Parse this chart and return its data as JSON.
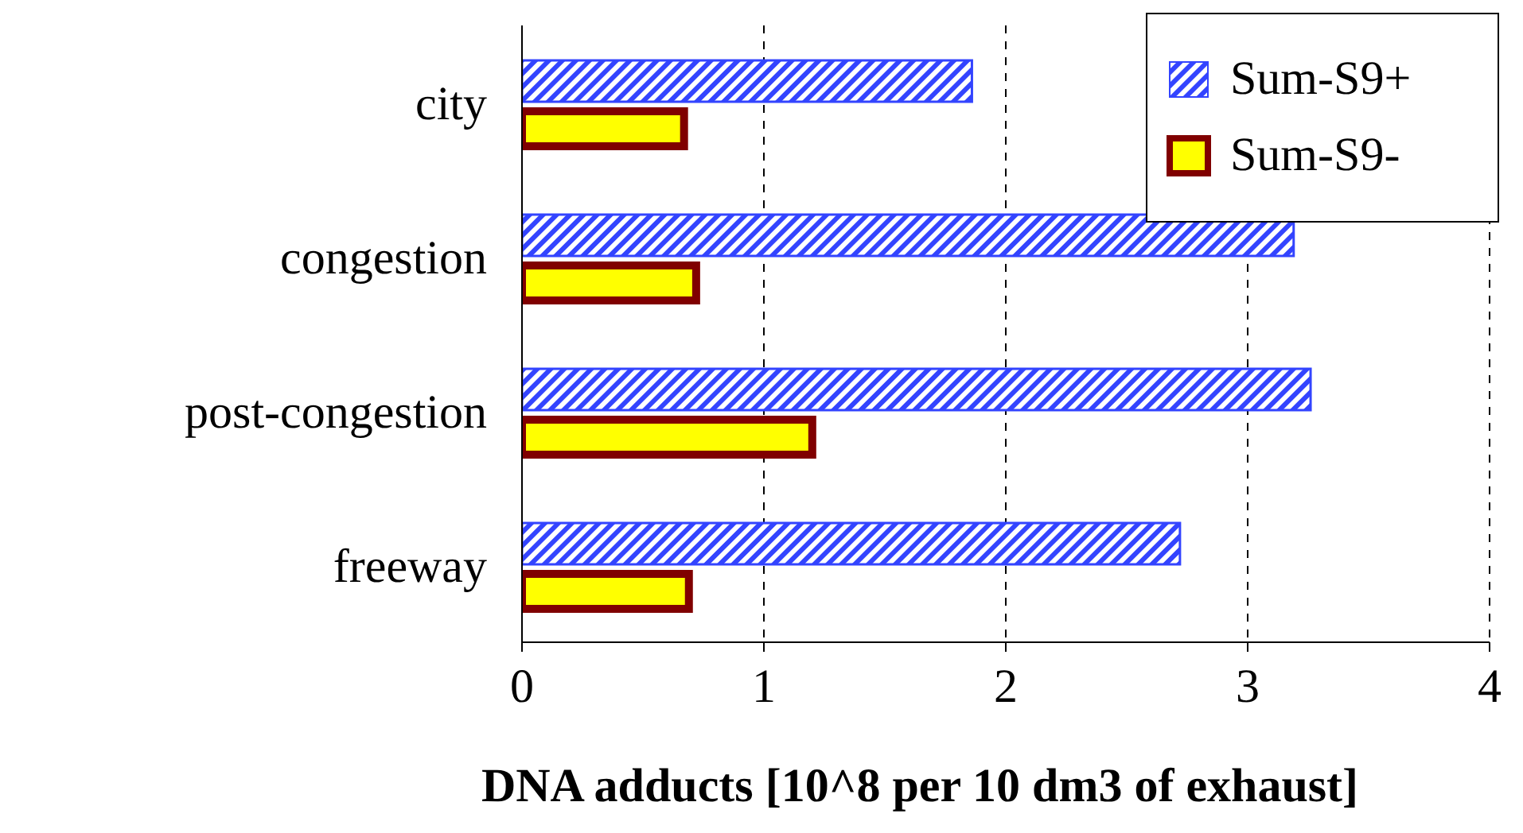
{
  "chart_data": {
    "type": "bar",
    "orientation": "horizontal",
    "xlabel": "DNA adducts [10^8 per 10 dm3 of exhaust]",
    "categories": [
      "city",
      "congestion",
      "post-congestion",
      "freeway"
    ],
    "series": [
      {
        "name": "Sum-S9+",
        "color": "#3344ff",
        "values": [
          1.86,
          3.19,
          3.26,
          2.72
        ]
      },
      {
        "name": "Sum-S9-",
        "color": "#ffff00",
        "values": [
          0.67,
          0.72,
          1.2,
          0.69
        ]
      }
    ],
    "xlim": [
      0,
      4
    ],
    "xticks": [
      0,
      1,
      2,
      3,
      4
    ],
    "grid": "x",
    "legend": "top right"
  }
}
